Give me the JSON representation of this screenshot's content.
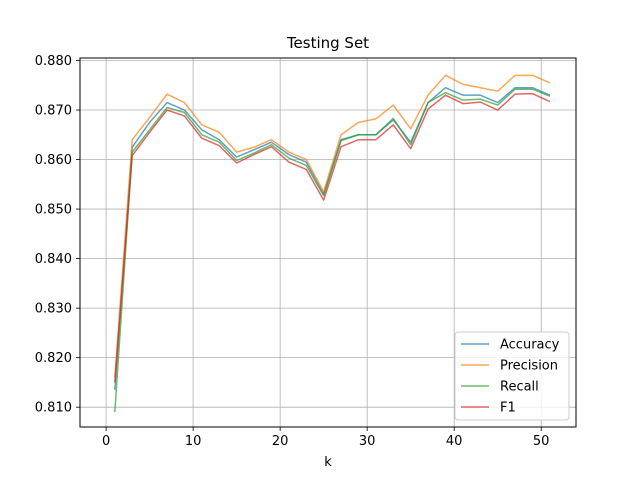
{
  "chart_data": {
    "type": "line",
    "title": "Testing Set",
    "xlabel": "k",
    "ylabel": "",
    "xlim": [
      -3,
      54
    ],
    "ylim": [
      0.806,
      0.8805
    ],
    "xticks": [
      0,
      10,
      20,
      30,
      40,
      50
    ],
    "xtick_labels": [
      "0",
      "10",
      "20",
      "30",
      "40",
      "50"
    ],
    "yticks": [
      0.81,
      0.82,
      0.83,
      0.84,
      0.85,
      0.86,
      0.87,
      0.88
    ],
    "ytick_labels": [
      "0.810",
      "0.820",
      "0.830",
      "0.840",
      "0.850",
      "0.860",
      "0.870",
      "0.880"
    ],
    "grid": true,
    "legend_position": "lower-right",
    "x": [
      1,
      3,
      5,
      7,
      9,
      11,
      13,
      15,
      17,
      19,
      21,
      23,
      25,
      27,
      29,
      31,
      33,
      35,
      37,
      39,
      41,
      43,
      45,
      47,
      49,
      51
    ],
    "series": [
      {
        "name": "Accuracy",
        "color": "#1f77b4",
        "values": [
          0.8135,
          0.8625,
          0.8675,
          0.8715,
          0.87,
          0.866,
          0.864,
          0.8605,
          0.862,
          0.8635,
          0.861,
          0.8595,
          0.853,
          0.864,
          0.865,
          0.865,
          0.868,
          0.8635,
          0.8715,
          0.8745,
          0.873,
          0.873,
          0.8715,
          0.8745,
          0.8745,
          0.873
        ]
      },
      {
        "name": "Precision",
        "color": "#ff7f0e",
        "values": [
          0.816,
          0.864,
          0.8685,
          0.8732,
          0.8715,
          0.867,
          0.8655,
          0.8615,
          0.8625,
          0.864,
          0.8615,
          0.86,
          0.8535,
          0.865,
          0.8675,
          0.8682,
          0.871,
          0.8662,
          0.873,
          0.877,
          0.8752,
          0.8745,
          0.8738,
          0.877,
          0.877,
          0.8755
        ]
      },
      {
        "name": "Recall",
        "color": "#2ca02c",
        "values": [
          0.809,
          0.8615,
          0.866,
          0.8705,
          0.8695,
          0.865,
          0.8635,
          0.8598,
          0.8613,
          0.863,
          0.8603,
          0.8588,
          0.8527,
          0.8638,
          0.865,
          0.865,
          0.8683,
          0.863,
          0.8715,
          0.8735,
          0.872,
          0.8722,
          0.871,
          0.8742,
          0.8742,
          0.8728
        ]
      },
      {
        "name": "F1",
        "color": "#d62728",
        "values": [
          0.815,
          0.8608,
          0.8655,
          0.87,
          0.8688,
          0.8643,
          0.8628,
          0.8593,
          0.861,
          0.8626,
          0.8595,
          0.858,
          0.8518,
          0.8626,
          0.864,
          0.864,
          0.867,
          0.8622,
          0.8702,
          0.873,
          0.8713,
          0.8716,
          0.87,
          0.8732,
          0.8733,
          0.8717
        ]
      }
    ]
  }
}
